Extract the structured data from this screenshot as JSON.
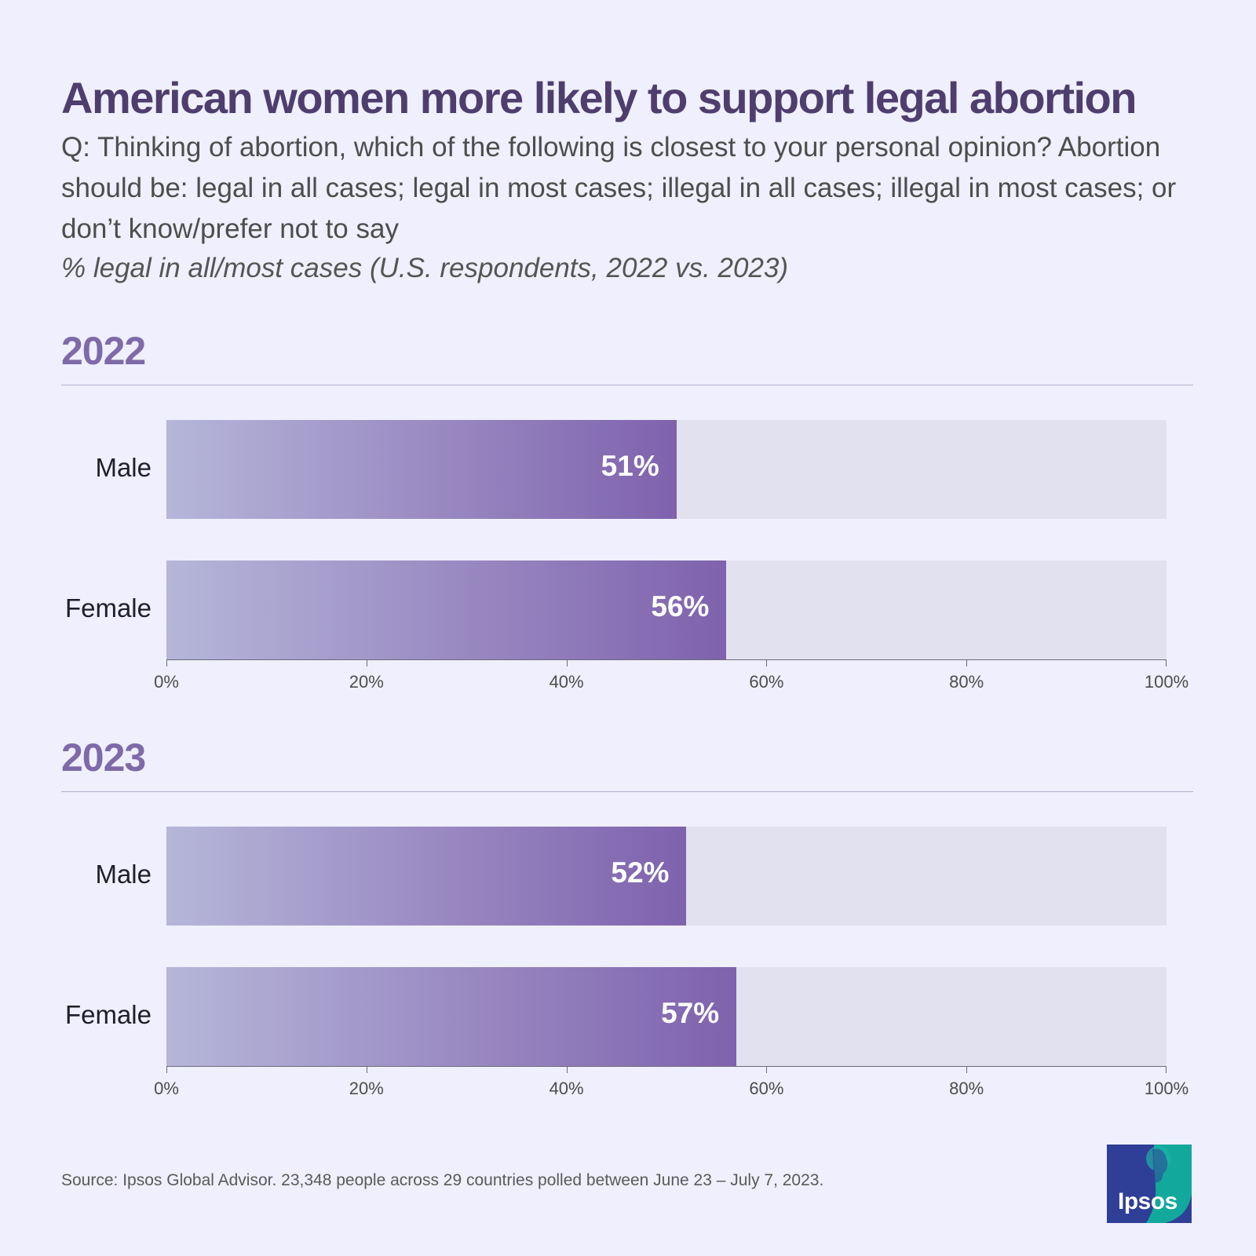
{
  "title": "American women more likely to support legal abortion",
  "question": "Q: Thinking of abortion, which of the following is closest to your personal opinion? Abortion should be: legal in all cases; legal in most cases; illegal in all cases; illegal in most cases; or don’t know/prefer not to say",
  "subtitle": "% legal in all/most cases (U.S. respondents, 2022 vs. 2023)",
  "source": "Source: Ipsos Global Advisor. 23,348 people across 29 countries polled between June 23 – July 7, 2023.",
  "logo_text": "Ipsos",
  "colors": {
    "background": "#efeffd",
    "title": "#4e3e6e",
    "year": "#7e6aa9",
    "bar_start": "#b6b6d9",
    "bar_end": "#7f62ad",
    "track": "#e2e1ef"
  },
  "chart_data": [
    {
      "type": "bar",
      "orientation": "horizontal",
      "title": "2022",
      "categories": [
        "Male",
        "Female"
      ],
      "values": [
        51,
        56
      ],
      "value_labels": [
        "51%",
        "56%"
      ],
      "xlim": [
        0,
        100
      ],
      "xticks": [
        "0%",
        "20%",
        "40%",
        "60%",
        "80%",
        "100%"
      ]
    },
    {
      "type": "bar",
      "orientation": "horizontal",
      "title": "2023",
      "categories": [
        "Male",
        "Female"
      ],
      "values": [
        52,
        57
      ],
      "value_labels": [
        "52%",
        "57%"
      ],
      "xlim": [
        0,
        100
      ],
      "xticks": [
        "0%",
        "20%",
        "40%",
        "60%",
        "80%",
        "100%"
      ]
    }
  ]
}
